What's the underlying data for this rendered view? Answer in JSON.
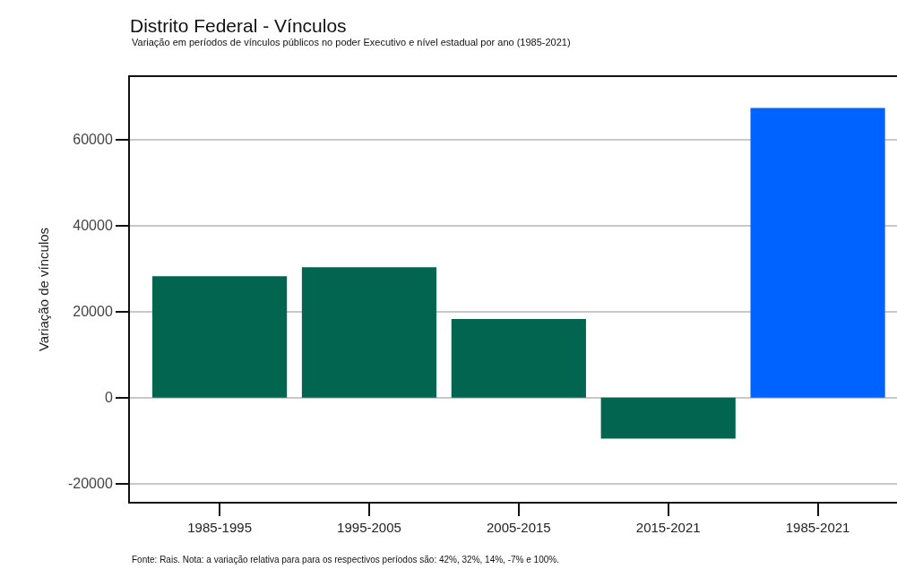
{
  "chart_data": {
    "type": "bar",
    "title": "Distrito Federal - Vínculos",
    "subtitle": "Variação em períodos de vínculos públicos no poder Executivo e nível estadual por ano (1985-2021)",
    "ylabel": "Variação de vínculos",
    "annotations": [
      "Fonte: Rais. Nota: a variação relativa para para os respectivos períodos são: 42%, 32%, 14%, -7% e 100%."
    ],
    "categories": [
      "1985-1995",
      "1995-2005",
      "2005-2015",
      "2015-2021",
      "1985-2021"
    ],
    "values": [
      28200,
      30300,
      18300,
      -9500,
      67300
    ],
    "colors": [
      "#02654f",
      "#02654f",
      "#02654f",
      "#02654f",
      "#0062ff"
    ],
    "ylim": [
      -24200,
      74500
    ],
    "yticks": [
      -20000,
      0,
      20000,
      40000,
      60000
    ],
    "grid": "y"
  }
}
